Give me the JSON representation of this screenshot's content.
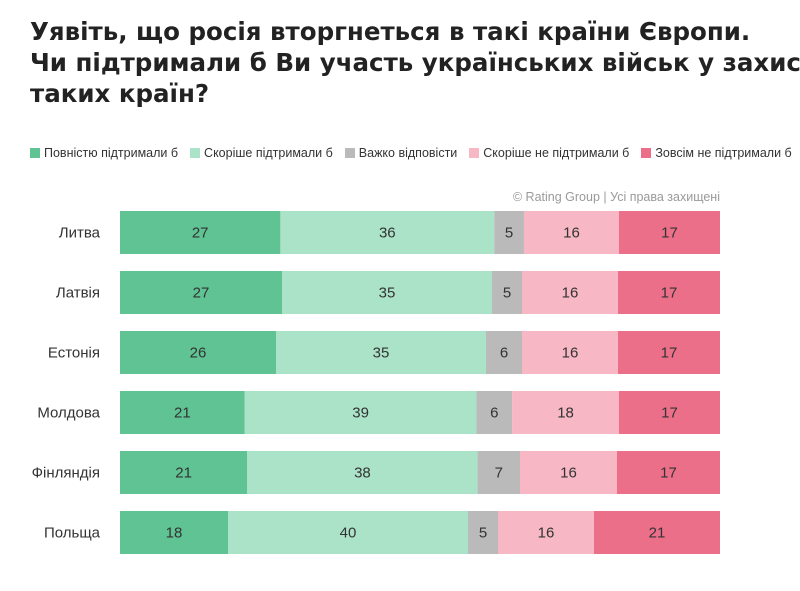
{
  "title_lines": [
    "Уявіть, що росія вторгнеться в такі країни Європи.",
    "Чи підтримали б Ви участь українських військ у захисті",
    "таких країн?"
  ],
  "source": "© Rating Group | Усі права захищені",
  "chart_data": {
    "type": "bar",
    "orientation": "horizontal",
    "stacked": true,
    "percent": true,
    "categories": [
      "Литва",
      "Латвія",
      "Естонія",
      "Молдова",
      "Фінляндія",
      "Польща"
    ],
    "series": [
      {
        "name": "Повністю підтримали б",
        "color": "#5fc394",
        "values": [
          27,
          27,
          26,
          21,
          21,
          18
        ]
      },
      {
        "name": "Скоріше підтримали б",
        "color": "#abe3c8",
        "values": [
          36,
          35,
          35,
          39,
          38,
          40
        ]
      },
      {
        "name": "Важко відповісти",
        "color": "#bababa",
        "values": [
          5,
          5,
          6,
          6,
          7,
          5
        ]
      },
      {
        "name": "Скоріше не підтримали б",
        "color": "#f7b7c4",
        "values": [
          16,
          16,
          16,
          18,
          16,
          16
        ]
      },
      {
        "name": "Зовсім не підтримали б",
        "color": "#ec6f8a",
        "values": [
          17,
          17,
          17,
          17,
          17,
          21
        ]
      }
    ],
    "legend_position": "top",
    "grid": false
  }
}
